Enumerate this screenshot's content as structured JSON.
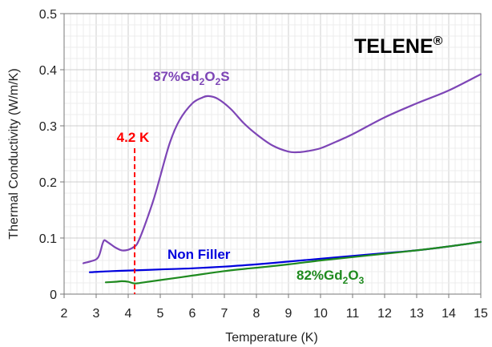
{
  "chart_data": {
    "type": "line",
    "title": "",
    "brand": "TELENE",
    "brand_mark": "®",
    "xlabel": "Temperature (K)",
    "ylabel": "Thermal Conductivity (W/m/K)",
    "xlim": [
      2,
      15
    ],
    "ylim": [
      0,
      0.5
    ],
    "xticks": [
      "2",
      "3",
      "4",
      "5",
      "6",
      "7",
      "8",
      "9",
      "10",
      "11",
      "12",
      "13",
      "14",
      "15"
    ],
    "yticks": [
      "0",
      "0.1",
      "0.2",
      "0.3",
      "0.4",
      "0.5"
    ],
    "xtick_values": [
      2,
      3,
      4,
      5,
      6,
      7,
      8,
      9,
      10,
      11,
      12,
      13,
      14,
      15
    ],
    "ytick_values": [
      0,
      0.1,
      0.2,
      0.3,
      0.4,
      0.5
    ],
    "grid": true,
    "annotations": [
      {
        "text": "4.2 K",
        "x": 4.2,
        "color": "#ff0000"
      }
    ],
    "series": [
      {
        "id": "gd2o2s",
        "label_main": "87%Gd",
        "label_sub1": "2",
        "label_mid": "O",
        "label_sub2": "2",
        "label_end": "S",
        "color": "#7d45b6",
        "x": [
          2.6,
          2.8,
          3.0,
          3.1,
          3.2,
          3.25,
          3.3,
          3.4,
          3.5,
          3.6,
          3.8,
          4.0,
          4.2,
          4.3,
          4.5,
          4.8,
          5.0,
          5.3,
          5.6,
          6.0,
          6.3,
          6.5,
          6.8,
          7.2,
          7.6,
          8.0,
          8.5,
          9.0,
          9.3,
          9.6,
          10.0,
          10.5,
          11.0,
          12.0,
          13.0,
          14.0,
          15.0
        ],
        "y": [
          0.055,
          0.058,
          0.062,
          0.07,
          0.09,
          0.096,
          0.095,
          0.091,
          0.087,
          0.083,
          0.078,
          0.079,
          0.085,
          0.092,
          0.12,
          0.17,
          0.21,
          0.27,
          0.31,
          0.34,
          0.35,
          0.353,
          0.348,
          0.33,
          0.305,
          0.285,
          0.265,
          0.254,
          0.253,
          0.255,
          0.26,
          0.272,
          0.285,
          0.315,
          0.34,
          0.363,
          0.392
        ]
      },
      {
        "id": "non-filler",
        "label_main": "Non Filler",
        "color": "#0000dd",
        "x": [
          2.8,
          3.5,
          4.0,
          5.0,
          6.0,
          7.0,
          8.0,
          9.0,
          10.0,
          11.0,
          12.0,
          13.0,
          14.0,
          15.0
        ],
        "y": [
          0.039,
          0.041,
          0.042,
          0.044,
          0.046,
          0.049,
          0.053,
          0.058,
          0.063,
          0.068,
          0.073,
          0.078,
          0.085,
          0.093
        ]
      },
      {
        "id": "gd2o3",
        "label_main": "82%Gd",
        "label_sub1": "2",
        "label_mid": "O",
        "label_sub2": "3",
        "label_end": "",
        "color": "#1f8a1f",
        "x": [
          3.3,
          3.6,
          3.8,
          4.0,
          4.2,
          4.5,
          5.0,
          6.0,
          7.0,
          7.8,
          8.0,
          9.0,
          10.0,
          11.0,
          12.0,
          13.0,
          14.0,
          15.0
        ],
        "y": [
          0.021,
          0.022,
          0.023,
          0.022,
          0.019,
          0.021,
          0.025,
          0.033,
          0.041,
          0.046,
          0.047,
          0.053,
          0.06,
          0.066,
          0.072,
          0.078,
          0.085,
          0.093
        ]
      }
    ]
  }
}
